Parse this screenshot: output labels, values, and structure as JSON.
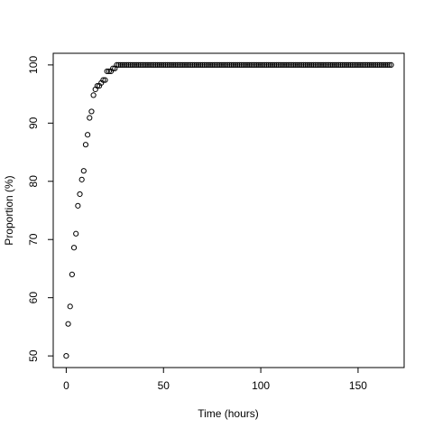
{
  "chart_data": {
    "type": "scatter",
    "xlabel": "Time (hours)",
    "ylabel": "Proportion (%)",
    "x": [
      0,
      1,
      2,
      3,
      4,
      5,
      6,
      7,
      8,
      9,
      10,
      11,
      12,
      13,
      14,
      15,
      16,
      17,
      18,
      19,
      20,
      21,
      22,
      23,
      24,
      25,
      26,
      27,
      28,
      29,
      30,
      31,
      32,
      33,
      34,
      35,
      36,
      37,
      38,
      39,
      40,
      41,
      42,
      43,
      44,
      45,
      46,
      47,
      48,
      49,
      50,
      51,
      52,
      53,
      54,
      55,
      56,
      57,
      58,
      59,
      60,
      61,
      62,
      63,
      64,
      65,
      66,
      67,
      68,
      69,
      70,
      71,
      72,
      73,
      74,
      75,
      76,
      77,
      78,
      79,
      80,
      81,
      82,
      83,
      84,
      85,
      86,
      87,
      88,
      89,
      90,
      91,
      92,
      93,
      94,
      95,
      96,
      97,
      98,
      99,
      100,
      101,
      102,
      103,
      104,
      105,
      106,
      107,
      108,
      109,
      110,
      111,
      112,
      113,
      114,
      115,
      116,
      117,
      118,
      119,
      120,
      121,
      122,
      123,
      124,
      125,
      126,
      127,
      128,
      129,
      130,
      131,
      132,
      133,
      134,
      135,
      136,
      137,
      138,
      139,
      140,
      141,
      142,
      143,
      144,
      145,
      146,
      147,
      148,
      149,
      150,
      151,
      152,
      153,
      154,
      155,
      156,
      157,
      158,
      159,
      160,
      161,
      162,
      163,
      164,
      165,
      166,
      167
    ],
    "values": [
      50,
      55.5,
      58.5,
      64,
      68.6,
      71,
      75.8,
      77.8,
      80.3,
      81.8,
      86.3,
      88,
      90.9,
      92,
      94.8,
      95.8,
      96.4,
      96.4,
      96.9,
      97.4,
      97.4,
      98.9,
      98.9,
      98.9,
      99.4,
      99.4,
      100,
      100,
      100,
      100,
      100,
      100,
      100,
      100,
      100,
      100,
      100,
      100,
      100,
      100,
      100,
      100,
      100,
      100,
      100,
      100,
      100,
      100,
      100,
      100,
      100,
      100,
      100,
      100,
      100,
      100,
      100,
      100,
      100,
      100,
      100,
      100,
      100,
      100,
      100,
      100,
      100,
      100,
      100,
      100,
      100,
      100,
      100,
      100,
      100,
      100,
      100,
      100,
      100,
      100,
      100,
      100,
      100,
      100,
      100,
      100,
      100,
      100,
      100,
      100,
      100,
      100,
      100,
      100,
      100,
      100,
      100,
      100,
      100,
      100,
      100,
      100,
      100,
      100,
      100,
      100,
      100,
      100,
      100,
      100,
      100,
      100,
      100,
      100,
      100,
      100,
      100,
      100,
      100,
      100,
      100,
      100,
      100,
      100,
      100,
      100,
      100,
      100,
      100,
      100,
      100,
      100,
      100,
      100,
      100,
      100,
      100,
      100,
      100,
      100,
      100,
      100,
      100,
      100,
      100,
      100,
      100,
      100,
      100,
      100,
      100,
      100,
      100,
      100,
      100,
      100,
      100,
      100,
      100,
      100,
      100,
      100,
      100,
      100,
      100,
      100,
      100,
      100
    ],
    "color": "#000000",
    "xlim": [
      -6.68,
      173.68
    ],
    "xticks": [
      0,
      50,
      100,
      150
    ],
    "ylim": [
      48,
      102
    ],
    "yticks": [
      50,
      60,
      70,
      80,
      90,
      100
    ]
  }
}
